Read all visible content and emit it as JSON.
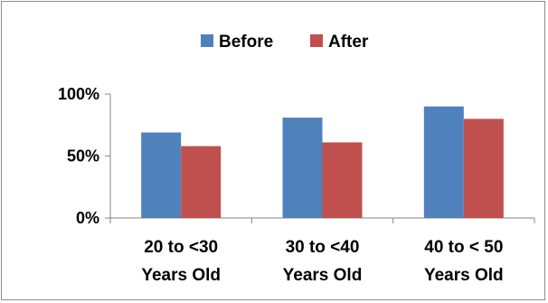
{
  "chart_data": {
    "type": "bar",
    "categories": [
      [
        "20 to <30",
        "Years Old"
      ],
      [
        "30 to <40",
        "Years Old"
      ],
      [
        "40 to < 50",
        "Years Old"
      ]
    ],
    "series": [
      {
        "name": "Before",
        "values": [
          69,
          81,
          90
        ],
        "color": "#4f81bd"
      },
      {
        "name": "After",
        "values": [
          58,
          61,
          80
        ],
        "color": "#c0504d"
      }
    ],
    "ylim": [
      0,
      100
    ],
    "yticks": [
      0,
      50,
      100
    ],
    "ytick_labels": [
      "0%",
      "50%",
      "100%"
    ],
    "grid": false,
    "legend_position": "top"
  }
}
